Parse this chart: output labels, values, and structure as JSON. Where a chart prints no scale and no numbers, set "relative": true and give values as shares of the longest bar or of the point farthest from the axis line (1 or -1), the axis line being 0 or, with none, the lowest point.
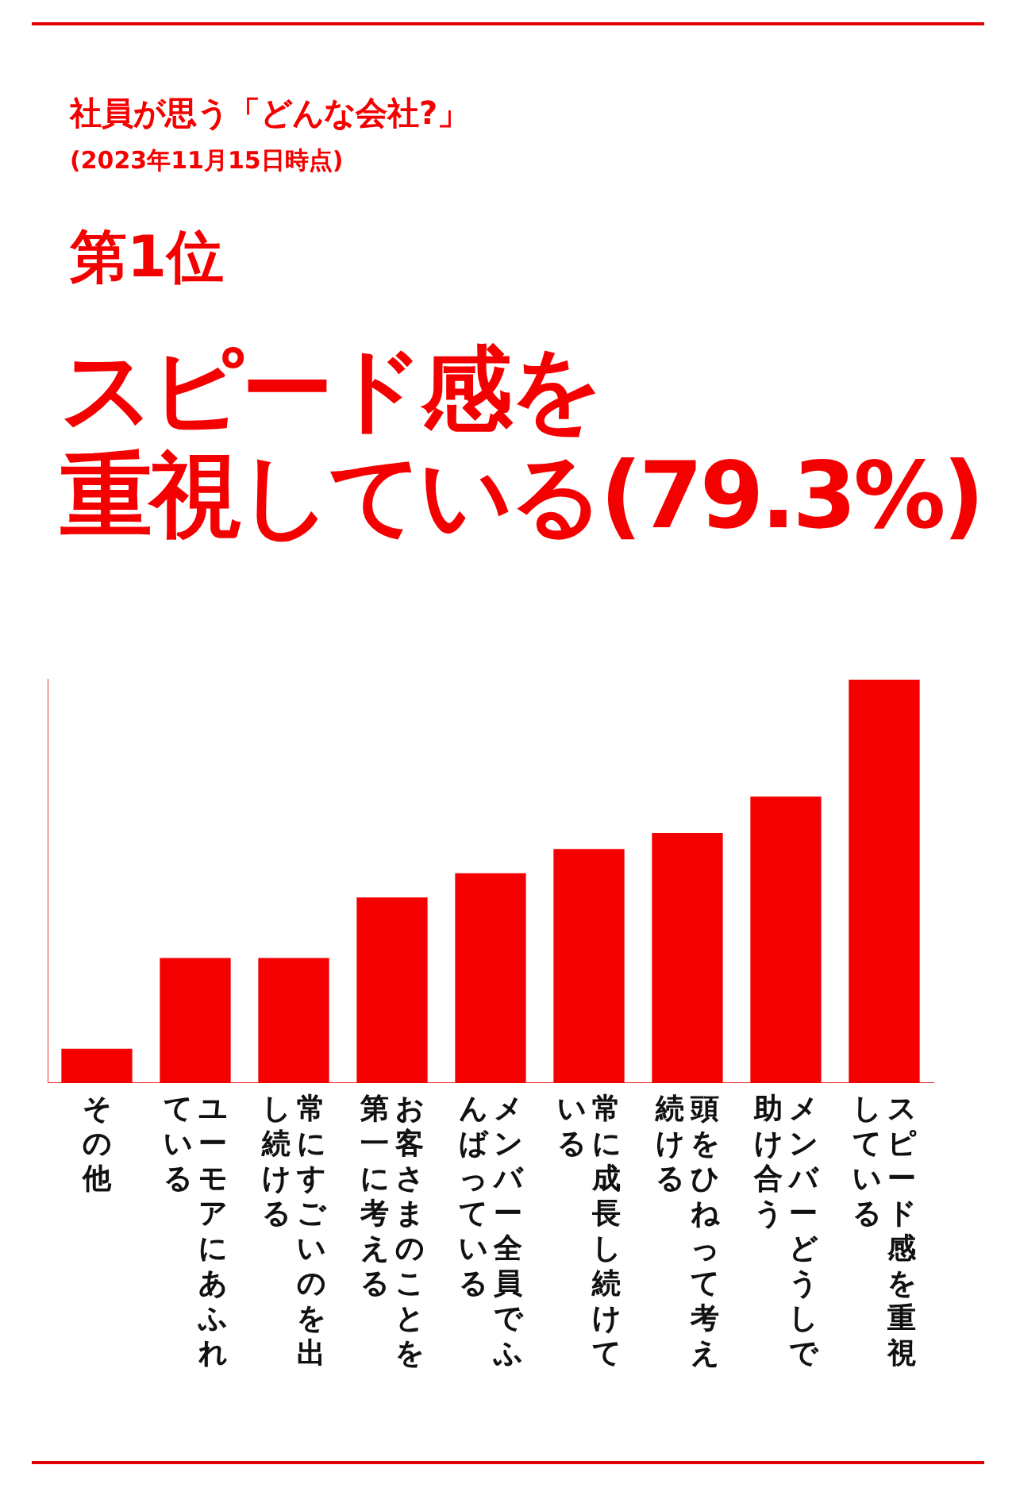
{
  "chart_data": {
    "type": "bar",
    "title": "社員が思う「どんな会社?」",
    "subtitle": "(2023年11月15日時点)",
    "annotations": [
      "第1位",
      "スピード感を",
      "重視している(79.3%)"
    ],
    "categories": [
      "その他",
      "ユーモアにあふれている",
      "常にすごいのを出し続ける",
      "お客さまのことを第一に考える",
      "メンバー全員でふんばっている",
      "常に成長し続けている",
      "頭をひねって考え続ける",
      "メンバーどうしで助け合う",
      "スピード感を重視している"
    ],
    "values": [
      0.085,
      0.31,
      0.31,
      0.46,
      0.52,
      0.58,
      0.62,
      0.71,
      1
    ],
    "color": "#f50000",
    "relative": true,
    "legend": false
  }
}
